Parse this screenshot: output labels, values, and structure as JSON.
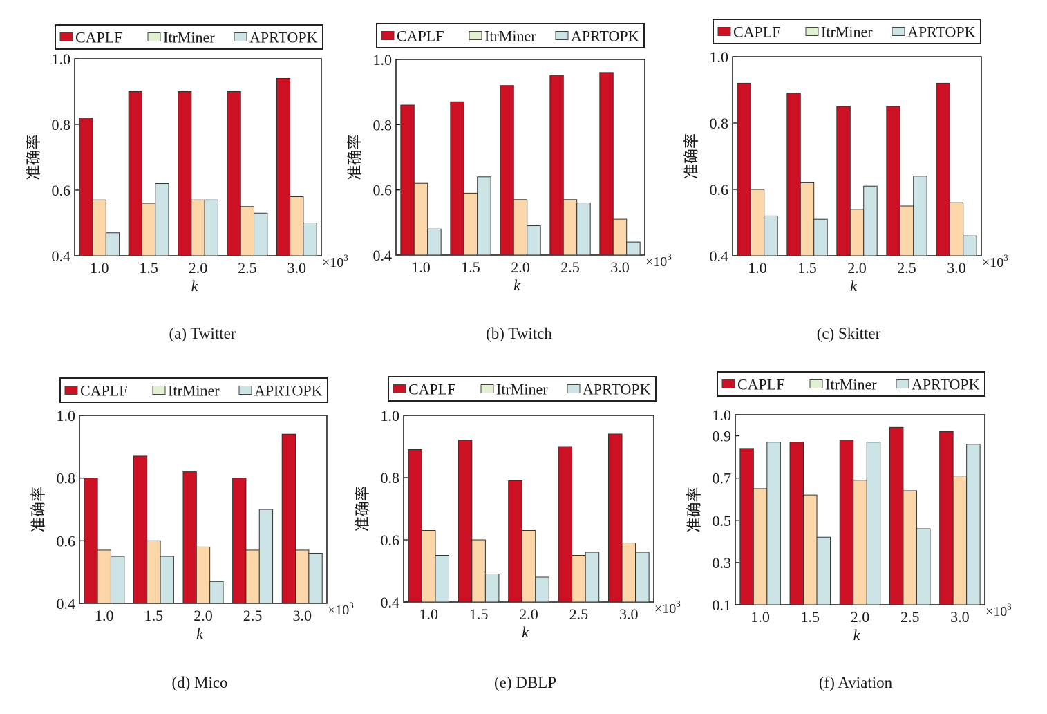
{
  "legend": {
    "entries": [
      "CAPLF",
      "ItrMiner",
      "APRTOPK"
    ],
    "colors": [
      "#cc1124",
      "#e2f0d2",
      "#cde4e6"
    ]
  },
  "bar_colors": [
    "#cc1124",
    "#fbd6a8",
    "#cde4e6"
  ],
  "multiplier_text": "×10",
  "multiplier_exp": "3",
  "chart_data": [
    {
      "type": "bar",
      "subtitle": "(a) Twitter",
      "xlabel": "k",
      "ylabel": "准确率",
      "categories": [
        "1.0",
        "1.5",
        "2.0",
        "2.5",
        "3.0"
      ],
      "ylim": [
        0.4,
        1.0
      ],
      "yticks": [
        "0.4",
        "0.6",
        "0.8",
        "1.0"
      ],
      "series": [
        {
          "name": "CAPLF",
          "values": [
            0.82,
            0.9,
            0.9,
            0.9,
            0.94
          ]
        },
        {
          "name": "ItrMiner",
          "values": [
            0.57,
            0.56,
            0.57,
            0.55,
            0.58
          ]
        },
        {
          "name": "APRTOPK",
          "values": [
            0.47,
            0.62,
            0.57,
            0.53,
            0.5
          ]
        }
      ]
    },
    {
      "type": "bar",
      "subtitle": "(b) Twitch",
      "xlabel": "k",
      "ylabel": "准确率",
      "categories": [
        "1.0",
        "1.5",
        "2.0",
        "2.5",
        "3.0"
      ],
      "ylim": [
        0.4,
        1.0
      ],
      "yticks": [
        "0.4",
        "0.6",
        "0.8",
        "1.0"
      ],
      "series": [
        {
          "name": "CAPLF",
          "values": [
            0.86,
            0.87,
            0.92,
            0.95,
            0.96
          ]
        },
        {
          "name": "ItrMiner",
          "values": [
            0.62,
            0.59,
            0.57,
            0.57,
            0.51
          ]
        },
        {
          "name": "APRTOPK",
          "values": [
            0.48,
            0.64,
            0.49,
            0.56,
            0.44
          ]
        }
      ]
    },
    {
      "type": "bar",
      "subtitle": "(c) Skitter",
      "xlabel": "k",
      "ylabel": "准确率",
      "categories": [
        "1.0",
        "1.5",
        "2.0",
        "2.5",
        "3.0"
      ],
      "ylim": [
        0.4,
        1.0
      ],
      "yticks": [
        "0.4",
        "0.6",
        "0.8",
        "1.0"
      ],
      "series": [
        {
          "name": "CAPLF",
          "values": [
            0.92,
            0.89,
            0.85,
            0.85,
            0.92
          ]
        },
        {
          "name": "ItrMiner",
          "values": [
            0.6,
            0.62,
            0.54,
            0.55,
            0.56
          ]
        },
        {
          "name": "APRTOPK",
          "values": [
            0.52,
            0.51,
            0.61,
            0.64,
            0.46
          ]
        }
      ]
    },
    {
      "type": "bar",
      "subtitle": "(d) Mico",
      "xlabel": "k",
      "ylabel": "准确率",
      "categories": [
        "1.0",
        "1.5",
        "2.0",
        "2.5",
        "3.0"
      ],
      "ylim": [
        0.4,
        1.0
      ],
      "yticks": [
        "0.4",
        "0.6",
        "0.8",
        "1.0"
      ],
      "series": [
        {
          "name": "CAPLF",
          "values": [
            0.8,
            0.87,
            0.82,
            0.8,
            0.94
          ]
        },
        {
          "name": "ItrMiner",
          "values": [
            0.57,
            0.6,
            0.58,
            0.57,
            0.57
          ]
        },
        {
          "name": "APRTOPK",
          "values": [
            0.55,
            0.55,
            0.47,
            0.7,
            0.56
          ]
        }
      ]
    },
    {
      "type": "bar",
      "subtitle": "(e) DBLP",
      "xlabel": "k",
      "ylabel": "准确率",
      "categories": [
        "1.0",
        "1.5",
        "2.0",
        "2.5",
        "3.0"
      ],
      "ylim": [
        0.4,
        1.0
      ],
      "yticks": [
        "0.4",
        "0.6",
        "0.8",
        "1.0"
      ],
      "series": [
        {
          "name": "CAPLF",
          "values": [
            0.89,
            0.92,
            0.79,
            0.9,
            0.94
          ]
        },
        {
          "name": "ItrMiner",
          "values": [
            0.63,
            0.6,
            0.63,
            0.55,
            0.59
          ]
        },
        {
          "name": "APRTOPK",
          "values": [
            0.55,
            0.49,
            0.48,
            0.56,
            0.56
          ]
        }
      ]
    },
    {
      "type": "bar",
      "subtitle": "(f) Aviation",
      "xlabel": "k",
      "ylabel": "准确率",
      "categories": [
        "1.0",
        "1.5",
        "2.0",
        "2.5",
        "3.0"
      ],
      "ylim": [
        0.1,
        1.0
      ],
      "yticks": [
        "0.1",
        "0.3",
        "0.5",
        "0.7",
        "0.9",
        "1.0"
      ],
      "series": [
        {
          "name": "CAPLF",
          "values": [
            0.84,
            0.87,
            0.88,
            0.94,
            0.92
          ]
        },
        {
          "name": "ItrMiner",
          "values": [
            0.65,
            0.62,
            0.69,
            0.64,
            0.71
          ]
        },
        {
          "name": "APRTOPK",
          "values": [
            0.87,
            0.42,
            0.87,
            0.46,
            0.86
          ]
        }
      ]
    }
  ]
}
